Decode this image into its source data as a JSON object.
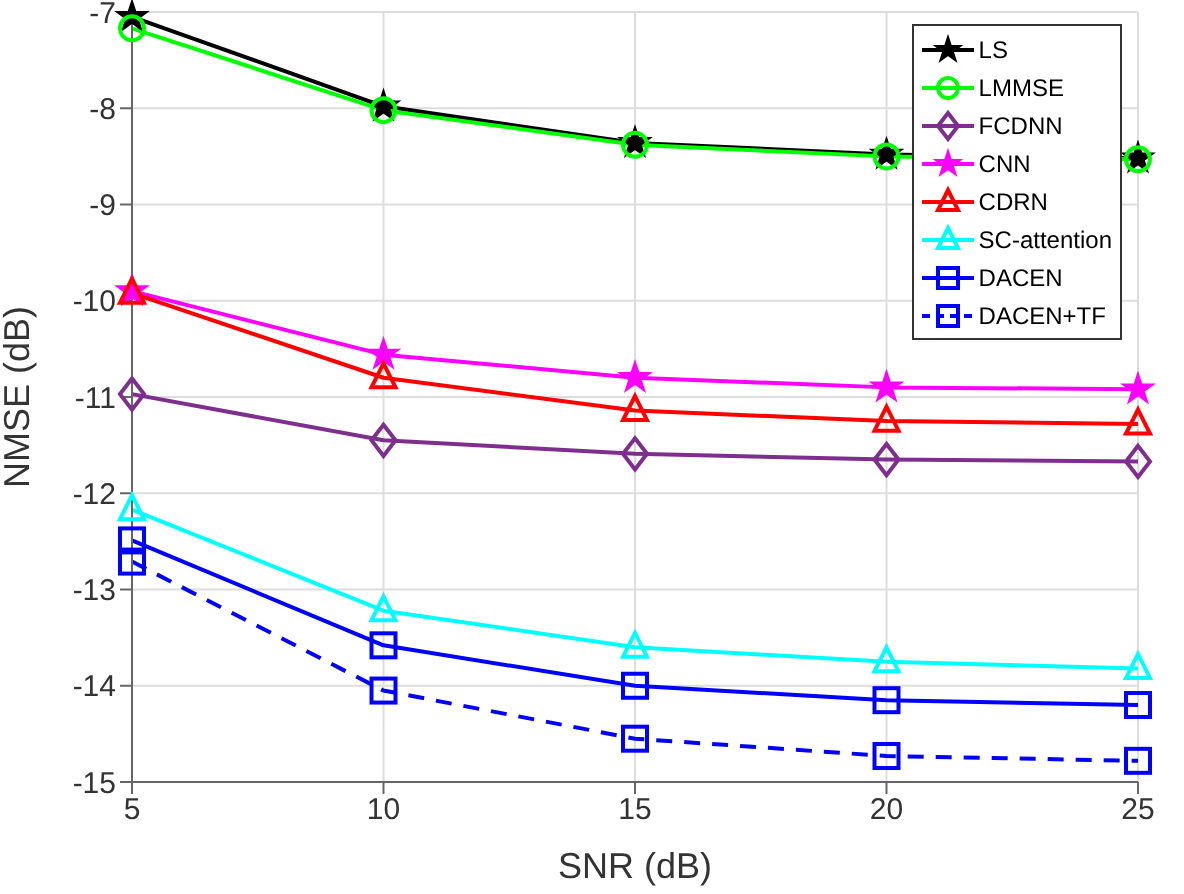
{
  "chart_data": {
    "type": "line",
    "xlabel": "SNR (dB)",
    "ylabel": "NMSE (dB)",
    "x": [
      5,
      10,
      15,
      20,
      25
    ],
    "xlim": [
      5,
      25
    ],
    "xticks": [
      5,
      10,
      15,
      20,
      25
    ],
    "ylim": [
      -15,
      -7
    ],
    "yticks": [
      -15,
      -14,
      -13,
      -12,
      -11,
      -10,
      -9,
      -8,
      -7
    ],
    "log": false,
    "grid": true,
    "legend": "top right",
    "series": [
      {
        "name": "LS",
        "color": "#000000",
        "marker": "star",
        "line_style": "solid",
        "values": [
          -7.05,
          -7.98,
          -8.36,
          -8.48,
          -8.52
        ]
      },
      {
        "name": "LMMSE",
        "color": "#00ff00",
        "marker": "circle",
        "line_style": "solid",
        "values": [
          -7.17,
          -8.02,
          -8.38,
          -8.5,
          -8.53
        ]
      },
      {
        "name": "FCDNN",
        "color": "#7e2f8e",
        "marker": "diamond",
        "line_style": "solid",
        "values": [
          -10.97,
          -11.45,
          -11.59,
          -11.65,
          -11.67
        ]
      },
      {
        "name": "CNN",
        "color": "#ff00ff",
        "marker": "star",
        "line_style": "solid",
        "values": [
          -9.9,
          -10.56,
          -10.8,
          -10.9,
          -10.92
        ]
      },
      {
        "name": "CDRN",
        "color": "#ff0000",
        "marker": "triangle",
        "line_style": "solid",
        "values": [
          -9.92,
          -10.8,
          -11.14,
          -11.25,
          -11.28
        ]
      },
      {
        "name": "SC-attention",
        "color": "#00ffff",
        "marker": "triangle",
        "line_style": "solid",
        "values": [
          -12.17,
          -13.22,
          -13.6,
          -13.75,
          -13.82
        ]
      },
      {
        "name": "DACEN",
        "color": "#0000ff",
        "marker": "square",
        "line_style": "solid",
        "values": [
          -12.49,
          -13.58,
          -14.0,
          -14.15,
          -14.2
        ]
      },
      {
        "name": "DACEN+TF",
        "color": "#0000ff",
        "marker": "square",
        "line_style": "dashed",
        "values": [
          -12.71,
          -14.05,
          -14.55,
          -14.73,
          -14.78
        ]
      }
    ]
  }
}
